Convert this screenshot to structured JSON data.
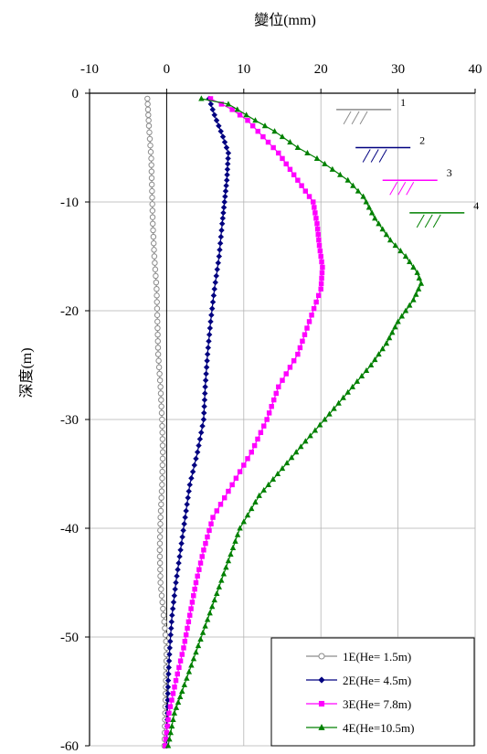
{
  "chart_data": {
    "type": "line",
    "xlabel": "變位(mm)",
    "ylabel": "深度(m)",
    "xlim": [
      -10,
      40
    ],
    "ylim": [
      -60,
      0
    ],
    "x_ticks": [
      "-10",
      "0",
      "10",
      "20",
      "30",
      "40"
    ],
    "y_ticks": [
      "0",
      "-10",
      "-20",
      "-30",
      "-40",
      "-50",
      "-60"
    ],
    "grid": "on",
    "legend_position": "bottom-right",
    "series": [
      {
        "name": "1E(He= 1.5m)",
        "color": "#8c8c8c",
        "marker": "circle-open",
        "points": [
          [
            -2.5,
            -0.5
          ],
          [
            -2.3,
            -3
          ],
          [
            -2.0,
            -6
          ],
          [
            -1.9,
            -9
          ],
          [
            -1.8,
            -12
          ],
          [
            -1.6,
            -15
          ],
          [
            -1.3,
            -18
          ],
          [
            -1.2,
            -21
          ],
          [
            -1.1,
            -24
          ],
          [
            -0.8,
            -27
          ],
          [
            -0.6,
            -30
          ],
          [
            -0.5,
            -33
          ],
          [
            -0.6,
            -36
          ],
          [
            -0.8,
            -39
          ],
          [
            -0.9,
            -42
          ],
          [
            -0.8,
            -45
          ],
          [
            -0.4,
            -48
          ],
          [
            0,
            -51
          ],
          [
            -0.1,
            -54
          ],
          [
            -0.2,
            -57
          ],
          [
            -0.3,
            -60
          ]
        ]
      },
      {
        "name": "2E(He= 4.5m)",
        "color": "#000080",
        "marker": "diamond",
        "points": [
          [
            5.5,
            -0.5
          ],
          [
            6.2,
            -2
          ],
          [
            7.3,
            -4
          ],
          [
            8.0,
            -5.5
          ],
          [
            7.8,
            -8
          ],
          [
            7.5,
            -10
          ],
          [
            7.2,
            -12
          ],
          [
            6.8,
            -15
          ],
          [
            6.2,
            -18
          ],
          [
            5.7,
            -21
          ],
          [
            5.3,
            -24
          ],
          [
            5.0,
            -27
          ],
          [
            4.8,
            -30
          ],
          [
            4.0,
            -33
          ],
          [
            3.0,
            -36
          ],
          [
            2.4,
            -39
          ],
          [
            1.8,
            -42
          ],
          [
            1.2,
            -45
          ],
          [
            0.7,
            -48
          ],
          [
            0.4,
            -51
          ],
          [
            0.2,
            -54
          ],
          [
            0.1,
            -57
          ],
          [
            0,
            -60
          ]
        ]
      },
      {
        "name": "3E(He= 7.8m)",
        "color": "#ff00ff",
        "marker": "square",
        "points": [
          [
            5.7,
            -0.5
          ],
          [
            8.5,
            -1.5
          ],
          [
            10.5,
            -2.5
          ],
          [
            12.5,
            -4
          ],
          [
            14.5,
            -5.5
          ],
          [
            16.0,
            -7
          ],
          [
            17.5,
            -8.5
          ],
          [
            19.0,
            -10
          ],
          [
            19.5,
            -12
          ],
          [
            19.8,
            -14
          ],
          [
            20.2,
            -16
          ],
          [
            20.0,
            -18
          ],
          [
            18.5,
            -21
          ],
          [
            17.0,
            -24
          ],
          [
            14.5,
            -27
          ],
          [
            13.0,
            -30
          ],
          [
            11.0,
            -33
          ],
          [
            8.5,
            -36
          ],
          [
            6.0,
            -39
          ],
          [
            4.8,
            -42
          ],
          [
            3.8,
            -45
          ],
          [
            3.0,
            -48
          ],
          [
            2.2,
            -51
          ],
          [
            1.2,
            -54
          ],
          [
            0.3,
            -57
          ],
          [
            -0.2,
            -60
          ]
        ]
      },
      {
        "name": "4E(He=10.5m)",
        "color": "#008000",
        "marker": "triangle",
        "points": [
          [
            4.5,
            -0.5
          ],
          [
            8.0,
            -1
          ],
          [
            11.5,
            -2.5
          ],
          [
            14.0,
            -3.5
          ],
          [
            17.0,
            -5
          ],
          [
            19.5,
            -6
          ],
          [
            21.5,
            -7
          ],
          [
            23.5,
            -8
          ],
          [
            25.5,
            -9.5
          ],
          [
            27.0,
            -11.5
          ],
          [
            29.0,
            -13.5
          ],
          [
            31.0,
            -15
          ],
          [
            32.5,
            -16.5
          ],
          [
            33.0,
            -17.5
          ],
          [
            32.0,
            -19
          ],
          [
            30.0,
            -21
          ],
          [
            28.5,
            -23
          ],
          [
            26.5,
            -25
          ],
          [
            23.5,
            -27.5
          ],
          [
            20.5,
            -30
          ],
          [
            18.0,
            -32
          ],
          [
            15.0,
            -34.5
          ],
          [
            12.0,
            -37
          ],
          [
            9.5,
            -40
          ],
          [
            8.0,
            -43
          ],
          [
            6.5,
            -46
          ],
          [
            5.0,
            -49
          ],
          [
            3.5,
            -52
          ],
          [
            2.0,
            -55
          ],
          [
            1.0,
            -57
          ],
          [
            0.2,
            -60
          ]
        ]
      }
    ],
    "stage_markers": [
      {
        "label": "1",
        "x": 22,
        "y": -1.5,
        "color": "#8c8c8c"
      },
      {
        "label": "2",
        "x": 24.5,
        "y": -5,
        "color": "#000080"
      },
      {
        "label": "3",
        "x": 28,
        "y": -8,
        "color": "#ff00ff"
      },
      {
        "label": "4",
        "x": 31.5,
        "y": -11,
        "color": "#008000"
      }
    ]
  }
}
